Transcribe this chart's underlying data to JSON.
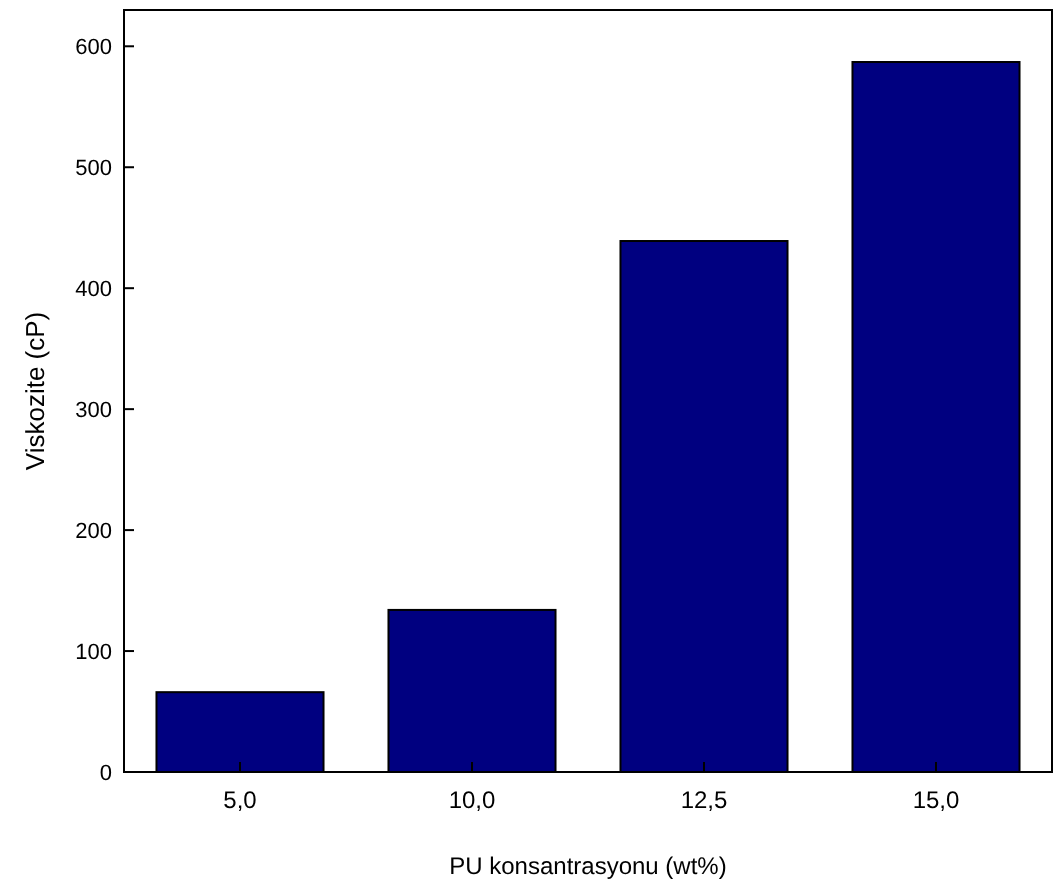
{
  "chart_data": {
    "type": "bar",
    "xlabel": "PU konsantrasyonu (wt%)",
    "ylabel": "Viskozite (cP)",
    "categories": [
      "5,0",
      "10,0",
      "12,5",
      "15,0"
    ],
    "values": [
      66,
      134,
      439,
      587
    ],
    "color": "#000080",
    "ylim": [
      0,
      630
    ],
    "yticks": [
      0,
      100,
      200,
      300,
      400,
      500,
      600
    ],
    "grid": false
  }
}
